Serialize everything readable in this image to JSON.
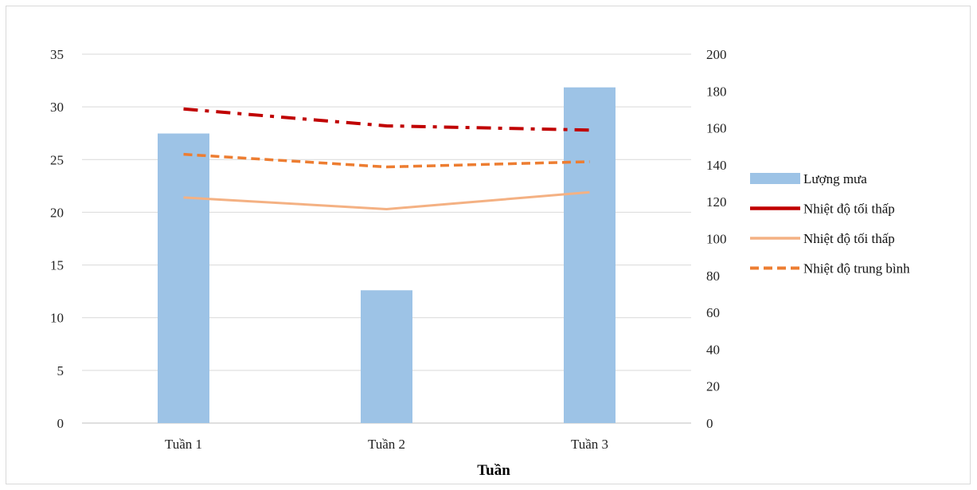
{
  "chart_data": {
    "type": "bar",
    "title": "",
    "xlabel": "Tuần",
    "ylabel": "",
    "y2label": "",
    "categories": [
      "Tuần 1",
      "Tuần 2",
      "Tuần 3"
    ],
    "ylim": [
      0,
      35
    ],
    "y_ticks": [
      0,
      5,
      10,
      15,
      20,
      25,
      30,
      35
    ],
    "y2lim": [
      0,
      200
    ],
    "y2_ticks": [
      0,
      20,
      40,
      60,
      80,
      100,
      120,
      140,
      160,
      180,
      200
    ],
    "grid": true,
    "legend_position": "right",
    "series": [
      {
        "name": "Lượng mưa",
        "type": "bar",
        "axis": "right",
        "values": [
          157,
          72,
          182
        ],
        "color": "#9dc3e6"
      },
      {
        "name": "Nhiệt độ tối thấp",
        "type": "line",
        "style": "dash-dot",
        "axis": "left",
        "values": [
          29.8,
          28.2,
          27.8
        ],
        "color": "#c00000"
      },
      {
        "name": "Nhiệt độ tối thấp",
        "type": "line",
        "style": "solid",
        "axis": "left",
        "values": [
          21.4,
          20.3,
          21.9
        ],
        "color": "#f4b183"
      },
      {
        "name": "Nhiệt độ trung bình",
        "type": "line",
        "style": "dashed",
        "axis": "left",
        "values": [
          25.5,
          24.3,
          24.8
        ],
        "color": "#ed7d31"
      }
    ]
  }
}
